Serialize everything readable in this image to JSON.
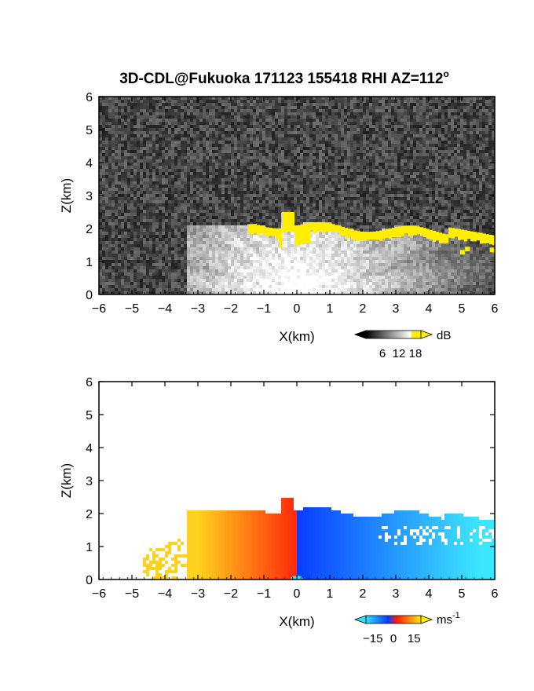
{
  "title": "3D-CDL@Fukuoka 171123 155418 RHI AZ=112",
  "title_superscript": "o",
  "colors": {
    "echo_highlight": "#ffee00",
    "velocity_toward": "#0a3cff",
    "velocity_away": "#ff6a10",
    "velocity_far_neg": "#30e0ff",
    "velocity_far_pos": "#ffc020"
  },
  "chart_data": [
    {
      "type": "heatmap",
      "name": "",
      "xlabel": "X(km)",
      "ylabel": "Z(km)",
      "xlim": [
        -6,
        6
      ],
      "ylim": [
        0,
        6
      ],
      "x_ticks": [
        "-6",
        "-5",
        "-4",
        "-3",
        "-2",
        "-1",
        "0",
        "1",
        "2",
        "3",
        "4",
        "5",
        "6"
      ],
      "y_ticks": [
        "0",
        "1",
        "2",
        "3",
        "4",
        "5",
        "6"
      ],
      "colorbar": {
        "unit": "dB",
        "unit_superscript": "",
        "ticks": [
          "6",
          "12",
          "18"
        ],
        "tick_values": [
          6,
          12,
          18
        ],
        "range": [
          0,
          20
        ],
        "colors": [
          "#000000",
          "#ffffff",
          "#ffee00"
        ]
      },
      "echo_extent": {
        "x": [
          -3.3,
          6
        ],
        "z": [
          0,
          2.5
        ]
      },
      "highlight_region": {
        "x": [
          -1.5,
          6
        ],
        "z": [
          1.3,
          2.5
        ]
      }
    },
    {
      "type": "heatmap",
      "name": "",
      "xlabel": "X(km)",
      "ylabel": "Z(km)",
      "xlim": [
        -6,
        6
      ],
      "ylim": [
        0,
        6
      ],
      "x_ticks": [
        "-6",
        "-5",
        "-4",
        "-3",
        "-2",
        "-1",
        "0",
        "1",
        "2",
        "3",
        "4",
        "5",
        "6"
      ],
      "y_ticks": [
        "0",
        "1",
        "2",
        "3",
        "4",
        "5",
        "6"
      ],
      "colorbar": {
        "unit": "ms",
        "unit_superscript": "-1",
        "ticks": [
          "-15",
          "0",
          "15"
        ],
        "tick_values": [
          -15,
          0,
          15
        ],
        "range": [
          -20,
          20
        ],
        "colors": [
          "#30e0ff",
          "#0a3cff",
          "#ff1a00",
          "#ffee00"
        ]
      },
      "echo_extent": {
        "x": [
          -4.7,
          6
        ],
        "z": [
          0,
          2.5
        ]
      },
      "sign_change_x": 0
    }
  ]
}
